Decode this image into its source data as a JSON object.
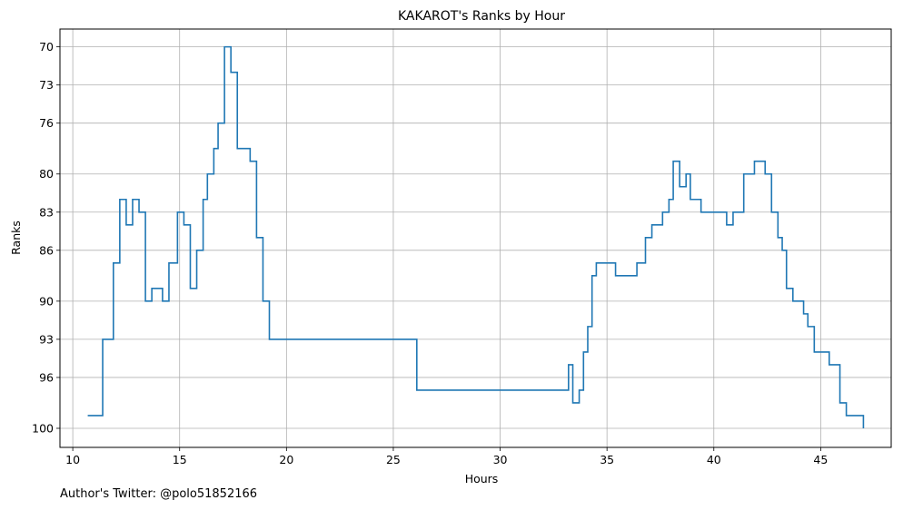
{
  "chart_data": {
    "type": "line",
    "step": true,
    "title": "KAKAROT's Ranks by Hour",
    "xlabel": "Hours",
    "ylabel": "Ranks",
    "xlim": [
      9.4,
      48.3
    ],
    "ylim": [
      101.5,
      68.6
    ],
    "y_inverted": true,
    "grid": true,
    "color": "#1f77b4",
    "x_ticks": [
      10,
      15,
      20,
      25,
      30,
      35,
      40,
      45
    ],
    "y_ticks": [
      70,
      73,
      76,
      80,
      83,
      86,
      90,
      93,
      96,
      100
    ],
    "series": [
      {
        "x": [
          10.7,
          11.4,
          11.9,
          12.2,
          12.5,
          12.8,
          13.1,
          13.4,
          13.7,
          14.2,
          14.5,
          14.9,
          15.2,
          15.5,
          15.8,
          16.1,
          16.3,
          16.6,
          16.8,
          17.1,
          17.4,
          17.7,
          18.3,
          18.6,
          18.9,
          19.2,
          26.1,
          33.2,
          33.4,
          33.7,
          33.9,
          34.1,
          34.3,
          34.5,
          35.4,
          36.4,
          36.8,
          37.1,
          37.6,
          37.9,
          38.1,
          38.4,
          38.7,
          38.9,
          39.4,
          40.6,
          40.9,
          41.4,
          41.9,
          42.4,
          42.7,
          43.0,
          43.2,
          43.4,
          43.7,
          44.2,
          44.4,
          44.7,
          45.4,
          45.9,
          46.2,
          46.7,
          47.0
        ],
        "y": [
          99,
          93,
          87,
          82,
          84,
          82,
          83,
          90,
          89,
          90,
          87,
          83,
          84,
          89,
          86,
          82,
          80,
          78,
          76,
          70,
          72,
          78,
          79,
          85,
          90,
          93,
          97,
          95,
          98,
          97,
          94,
          92,
          88,
          87,
          88,
          87,
          85,
          84,
          83,
          82,
          79,
          81,
          80,
          82,
          83,
          84,
          83,
          80,
          79,
          80,
          83,
          85,
          86,
          89,
          90,
          91,
          92,
          94,
          95,
          98,
          99,
          99,
          100
        ]
      }
    ]
  },
  "footer": {
    "note": "Author's Twitter: @polo51852166"
  }
}
